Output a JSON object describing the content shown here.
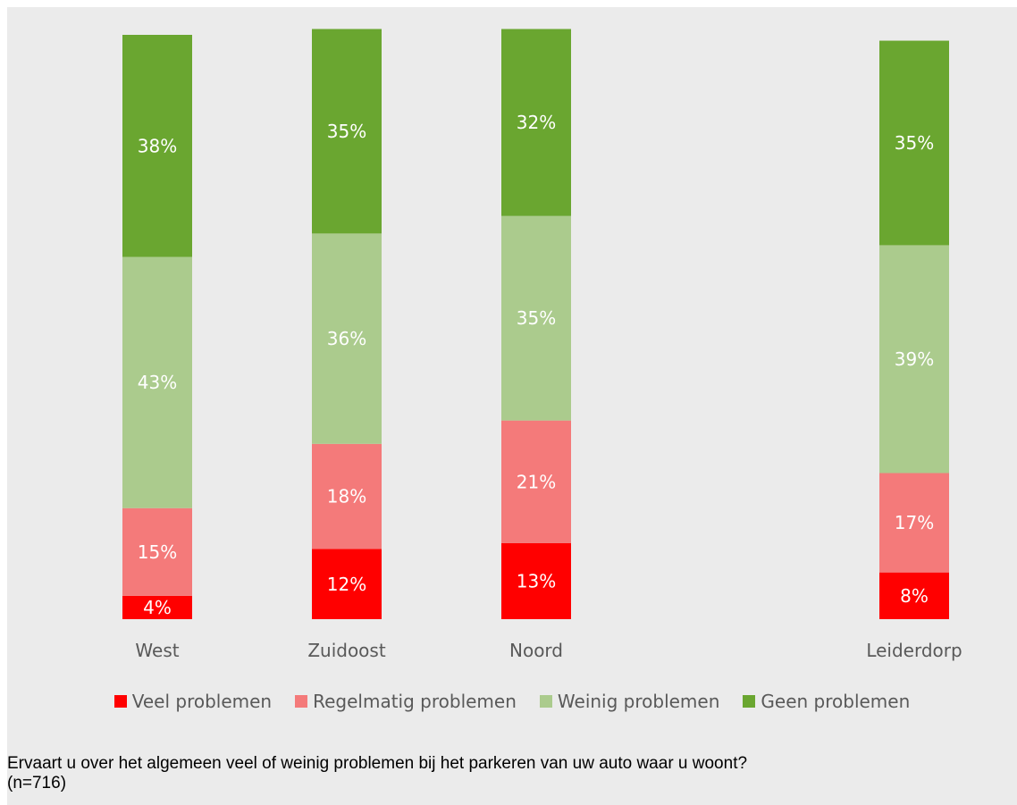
{
  "colors": {
    "background": "#ebebeb",
    "veel": "#ff0000",
    "regelmatig": "#f47a7a",
    "weinig": "#abcb8d",
    "geen": "#6aa630"
  },
  "chart_data": {
    "type": "bar",
    "stacked": true,
    "categories": [
      "West",
      "Zuidoost",
      "Noord",
      "Leiderdorp"
    ],
    "series": [
      {
        "name": "Veel problemen",
        "color": "#ff0000",
        "values": [
          4,
          12,
          13,
          8
        ],
        "labels": [
          "4%",
          "12%",
          "13%",
          "8%"
        ]
      },
      {
        "name": "Regelmatig problemen",
        "color": "#f47a7a",
        "values": [
          15,
          18,
          21,
          17
        ],
        "labels": [
          "15%",
          "18%",
          "21%",
          "17%"
        ]
      },
      {
        "name": "Weinig problemen",
        "color": "#abcb8d",
        "values": [
          43,
          36,
          35,
          39
        ],
        "labels": [
          "43%",
          "36%",
          "35%",
          "39%"
        ]
      },
      {
        "name": "Geen problemen",
        "color": "#6aa630",
        "values": [
          38,
          35,
          32,
          35
        ],
        "labels": [
          "38%",
          "35%",
          "32%",
          "35%"
        ]
      }
    ],
    "ylim": [
      0,
      100
    ],
    "grid": false,
    "legend_position": "bottom"
  },
  "caption": {
    "line1": "Ervaart u over het algemeen veel of weinig problemen bij het parkeren van uw auto waar u woont?",
    "line2": "(n=716)"
  }
}
